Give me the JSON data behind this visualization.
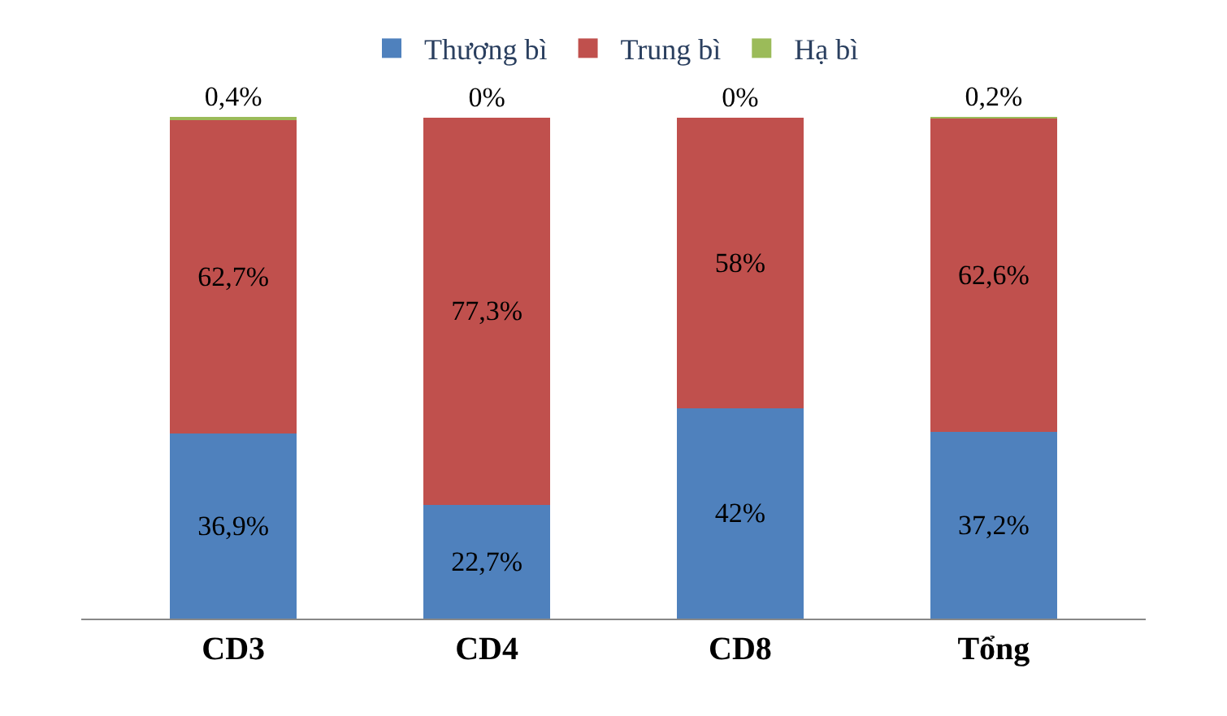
{
  "chart_data": {
    "type": "bar",
    "stacked": true,
    "categories": [
      "CD3",
      "CD4",
      "CD8",
      "Tổng"
    ],
    "series": [
      {
        "name": "Thượng bì",
        "color": "#4f81bd",
        "values": [
          36.9,
          22.7,
          42,
          37.2
        ],
        "value_labels": [
          "36,9%",
          "22,7%",
          "42%",
          "37,2%"
        ]
      },
      {
        "name": "Trung bì",
        "color": "#c0504d",
        "values": [
          62.7,
          77.3,
          58,
          62.6
        ],
        "value_labels": [
          "62,7%",
          "77,3%",
          "58%",
          "62,6%"
        ]
      },
      {
        "name": "Hạ bì",
        "color": "#9bbb59",
        "values": [
          0.4,
          0,
          0,
          0.2
        ],
        "value_labels": [
          "0,4%",
          "0%",
          "0%",
          "0,2%"
        ]
      }
    ],
    "legend": "top"
  }
}
